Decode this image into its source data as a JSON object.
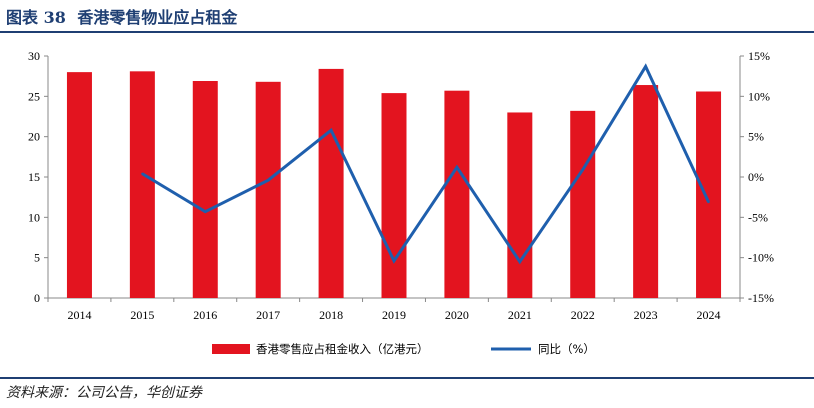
{
  "header": {
    "figure_label": "图表 38",
    "title": "香港零售物业应占租金"
  },
  "footer": {
    "source": "资料来源：公司公告，华创证券"
  },
  "chart_data": {
    "type": "bar",
    "categories": [
      "2014",
      "2015",
      "2016",
      "2017",
      "2018",
      "2019",
      "2020",
      "2021",
      "2022",
      "2023",
      "2024"
    ],
    "series": [
      {
        "name": "香港零售应占租金收入（亿港元）",
        "type": "bar",
        "axis": "left",
        "color": "#e3141f",
        "values": [
          28.0,
          28.1,
          26.9,
          26.8,
          28.4,
          25.4,
          25.7,
          23.0,
          23.2,
          26.4,
          25.6
        ]
      },
      {
        "name": "同比（%）",
        "type": "line",
        "axis": "right",
        "color": "#1f5fad",
        "values": [
          null,
          0.4,
          -4.3,
          -0.4,
          5.8,
          -10.4,
          1.2,
          -10.5,
          0.9,
          13.7,
          -3.1
        ]
      }
    ],
    "y_left": {
      "min": 0,
      "max": 30,
      "ticks": [
        0,
        5,
        10,
        15,
        20,
        25,
        30
      ],
      "tick_labels": [
        "0",
        "5",
        "10",
        "15",
        "20",
        "25",
        "30"
      ]
    },
    "y_right": {
      "min": -15,
      "max": 15,
      "ticks": [
        -15,
        -10,
        -5,
        0,
        5,
        10,
        15
      ],
      "tick_labels": [
        "-15%",
        "-10%",
        "-5%",
        "0%",
        "5%",
        "10%",
        "15%"
      ]
    },
    "grid": false,
    "legend_position": "bottom"
  }
}
